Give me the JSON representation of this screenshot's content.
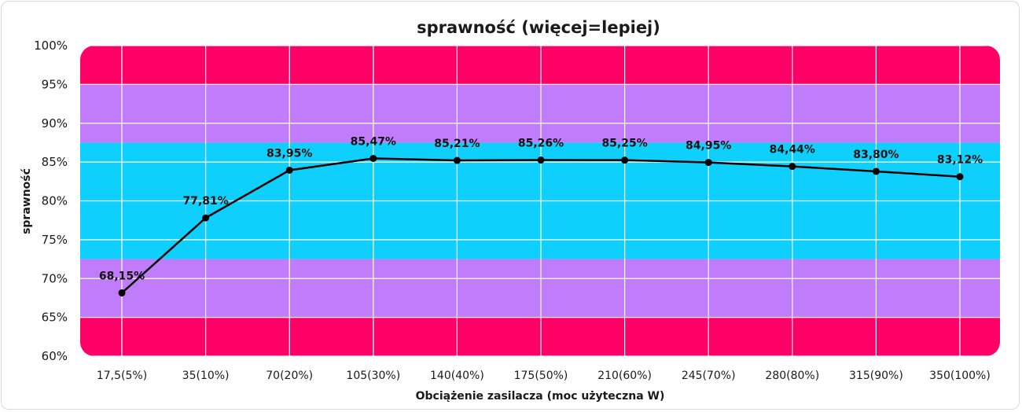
{
  "chart_data": {
    "type": "line",
    "title": "sprawność (więcej=lepiej)",
    "xlabel": "Obciążenie zasilacza (moc użyteczna W)",
    "ylabel": "sprawność",
    "categories": [
      "17,5(5%)",
      "35(10%)",
      "70(20%)",
      "105(30%)",
      "140(40%)",
      "175(50%)",
      "210(60%)",
      "245(70%)",
      "280(80%)",
      "315(90%)",
      "350(100%)"
    ],
    "series": [
      {
        "values": [
          68.15,
          77.81,
          83.95,
          85.47,
          85.21,
          85.26,
          85.25,
          84.95,
          84.44,
          83.8,
          83.12
        ],
        "labels": [
          "68,15%",
          "77,81%",
          "83,95%",
          "85,47%",
          "85,21%",
          "85,26%",
          "85,25%",
          "84,95%",
          "84,44%",
          "83,80%",
          "83,12%"
        ],
        "color": "#000000"
      }
    ],
    "ylim": [
      60,
      100
    ],
    "yticks": [
      60,
      65,
      70,
      75,
      80,
      85,
      90,
      95,
      100
    ],
    "ytick_labels": [
      "60%",
      "65%",
      "70%",
      "75%",
      "80%",
      "85%",
      "90%",
      "95%",
      "100%"
    ],
    "bands": [
      {
        "from": 60,
        "to": 65,
        "color": "#ff0066"
      },
      {
        "from": 65,
        "to": 72.5,
        "color": "#c17cfb"
      },
      {
        "from": 72.5,
        "to": 87.5,
        "color": "#0fd0fc"
      },
      {
        "from": 87.5,
        "to": 95,
        "color": "#c17cfb"
      },
      {
        "from": 95,
        "to": 100,
        "color": "#ff0066"
      }
    ],
    "grid": true,
    "grid_color": "#ffffff",
    "legend": "none"
  }
}
